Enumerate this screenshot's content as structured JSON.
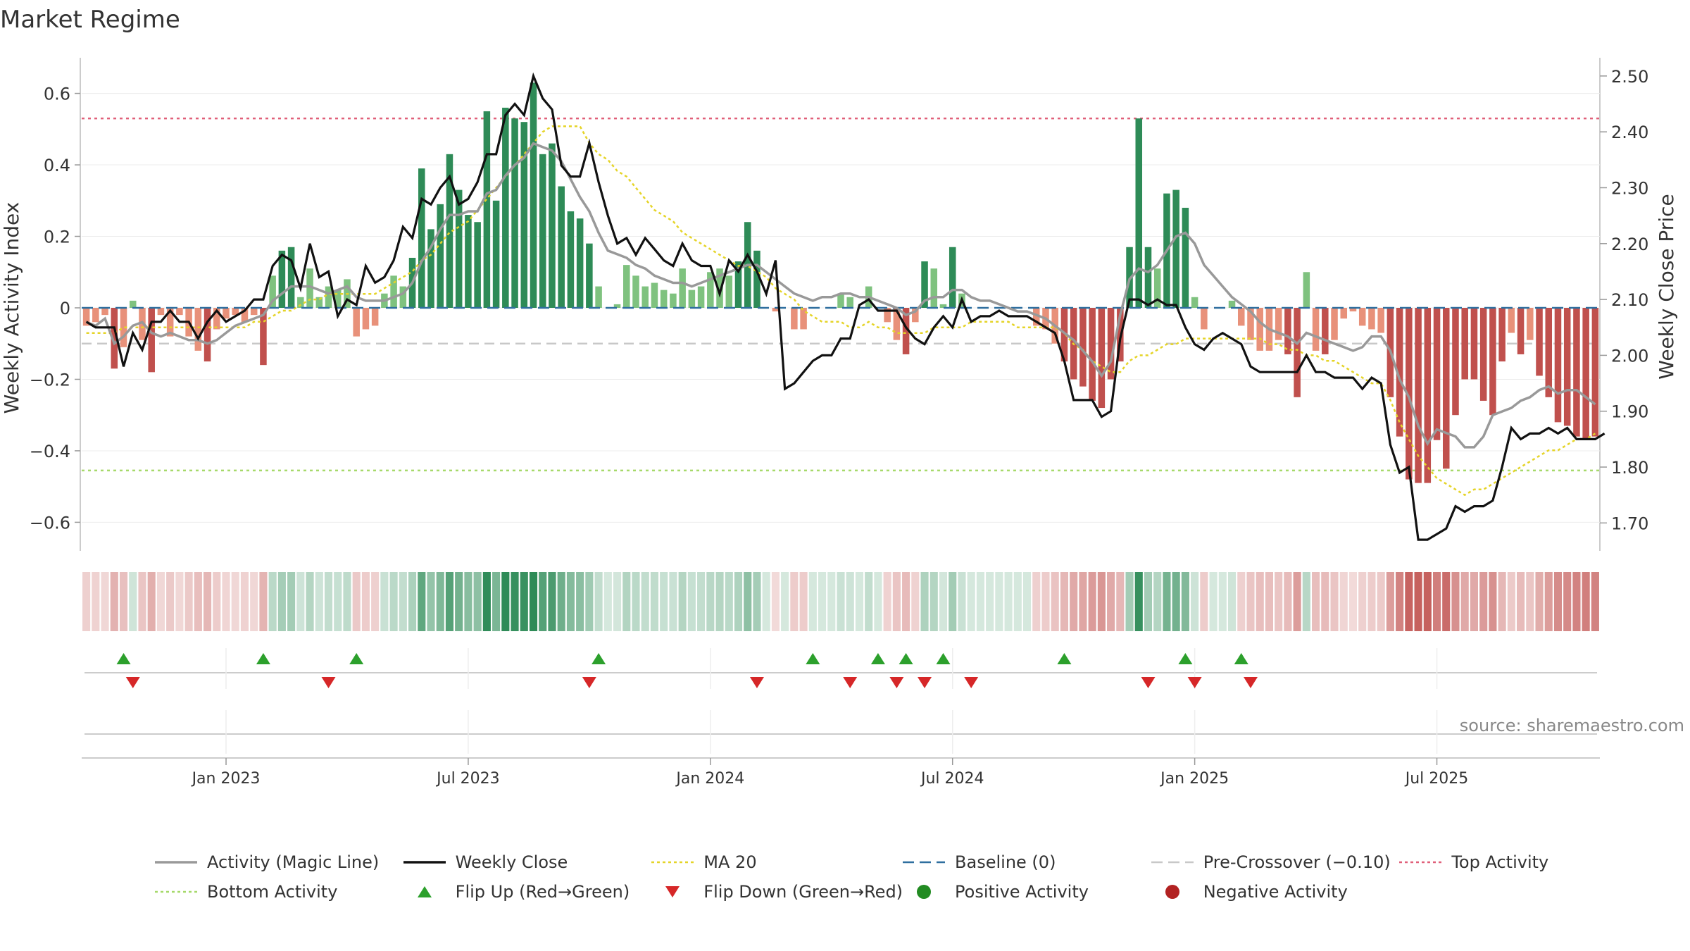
{
  "title": "Market Regime",
  "source": "source: sharemaestro.com",
  "colors": {
    "up_dark": "#2e8b57",
    "up_light": "#7fc27f",
    "down_dark": "#c0504d",
    "down_light": "#e8917a",
    "activity_line": "#999999",
    "close_line": "#111111",
    "ma20": "#e5d428",
    "baseline": "#2f6f9f",
    "pre_crossover": "#c8c8c8",
    "top_activity": "#e0607a",
    "bottom_activity": "#a6d96a",
    "flip_up": "#2ca02c",
    "flip_down": "#d62728",
    "positive": "#228b22",
    "negative": "#b22222"
  },
  "chart_data": {
    "type": "bar",
    "left_axis": {
      "label": "Weekly Activity Index",
      "ticks": [
        "0.6",
        "0.4",
        "0.2",
        "0",
        "−0.2",
        "−0.4",
        "−0.6"
      ],
      "tick_values": [
        0.6,
        0.4,
        0.2,
        0,
        -0.2,
        -0.4,
        -0.6
      ],
      "range": [
        -0.68,
        0.68
      ]
    },
    "right_axis": {
      "label": "Weekly Close Price",
      "ticks": [
        "2.50",
        "2.40",
        "2.30",
        "2.20",
        "2.10",
        "2.00",
        "1.90",
        "1.80",
        "1.70"
      ],
      "tick_values": [
        2.5,
        2.4,
        2.3,
        2.2,
        2.1,
        2.0,
        1.9,
        1.8,
        1.7
      ],
      "range": [
        1.65,
        2.52
      ]
    },
    "x_ticks": [
      {
        "label": "Jan 2023",
        "week": 15
      },
      {
        "label": "Jul 2023",
        "week": 41
      },
      {
        "label": "Jan 2024",
        "week": 67
      },
      {
        "label": "Jul 2024",
        "week": 93
      },
      {
        "label": "Jan 2025",
        "week": 119
      },
      {
        "label": "Jul 2025",
        "week": 145
      }
    ],
    "reference_lines": {
      "top_activity": 0.53,
      "bottom_activity": -0.455,
      "baseline": 0,
      "pre_crossover": -0.1
    },
    "activity_index": [
      -0.05,
      -0.04,
      -0.02,
      -0.17,
      -0.11,
      0.02,
      -0.09,
      -0.18,
      -0.02,
      -0.08,
      -0.02,
      -0.08,
      -0.12,
      -0.15,
      -0.06,
      -0.03,
      -0.02,
      -0.04,
      -0.02,
      -0.16,
      0.09,
      0.16,
      0.17,
      0.03,
      0.11,
      0.03,
      0.06,
      0.05,
      0.08,
      -0.08,
      -0.06,
      -0.05,
      0.04,
      0.09,
      0.06,
      0.14,
      0.39,
      0.22,
      0.29,
      0.43,
      0.33,
      0.26,
      0.24,
      0.55,
      0.3,
      0.56,
      0.53,
      0.52,
      0.63,
      0.43,
      0.46,
      0.34,
      0.27,
      0.25,
      0.18,
      0.06,
      0.0,
      0.01,
      0.12,
      0.09,
      0.06,
      0.07,
      0.05,
      0.04,
      0.11,
      0.05,
      0.06,
      0.1,
      0.11,
      0.09,
      0.13,
      0.24,
      0.16,
      0.0,
      -0.01,
      0.0,
      -0.06,
      -0.06,
      0.0,
      0.0,
      0.0,
      0.04,
      0.03,
      0.0,
      0.06,
      0.0,
      -0.04,
      -0.09,
      -0.13,
      -0.04,
      0.13,
      0.11,
      0.01,
      0.17,
      0.04,
      0.0,
      0.0,
      0.0,
      0.0,
      0.0,
      0.0,
      0.0,
      -0.05,
      -0.06,
      -0.1,
      -0.15,
      -0.2,
      -0.22,
      -0.26,
      -0.28,
      -0.2,
      -0.15,
      0.17,
      0.53,
      0.17,
      0.11,
      0.32,
      0.33,
      0.28,
      0.03,
      -0.06,
      0.0,
      0.0,
      0.02,
      -0.05,
      -0.09,
      -0.12,
      -0.12,
      -0.09,
      -0.13,
      -0.25,
      0.1,
      -0.12,
      -0.13,
      -0.09,
      -0.03,
      -0.01,
      -0.05,
      -0.06,
      -0.07,
      -0.25,
      -0.36,
      -0.48,
      -0.49,
      -0.49,
      -0.37,
      -0.45,
      -0.3,
      -0.2,
      -0.2,
      -0.26,
      -0.3,
      -0.15,
      -0.07,
      -0.13,
      -0.09,
      -0.19,
      -0.25,
      -0.32,
      -0.33,
      -0.36,
      -0.37,
      -0.36
    ],
    "activity_magic_line": [
      -0.04,
      -0.05,
      -0.03,
      -0.1,
      -0.08,
      -0.05,
      -0.04,
      -0.07,
      -0.08,
      -0.07,
      -0.08,
      -0.09,
      -0.09,
      -0.1,
      -0.09,
      -0.07,
      -0.05,
      -0.04,
      -0.03,
      -0.02,
      0.02,
      0.04,
      0.06,
      0.06,
      0.06,
      0.05,
      0.04,
      0.05,
      0.06,
      0.03,
      0.02,
      0.02,
      0.02,
      0.03,
      0.04,
      0.07,
      0.13,
      0.17,
      0.22,
      0.26,
      0.26,
      0.27,
      0.27,
      0.32,
      0.33,
      0.37,
      0.4,
      0.42,
      0.46,
      0.45,
      0.44,
      0.41,
      0.36,
      0.31,
      0.27,
      0.21,
      0.16,
      0.15,
      0.14,
      0.12,
      0.11,
      0.09,
      0.08,
      0.07,
      0.07,
      0.06,
      0.07,
      0.08,
      0.09,
      0.1,
      0.11,
      0.12,
      0.12,
      0.1,
      0.08,
      0.06,
      0.04,
      0.03,
      0.02,
      0.03,
      0.03,
      0.04,
      0.04,
      0.03,
      0.03,
      0.02,
      0.01,
      0.0,
      -0.02,
      -0.01,
      0.02,
      0.03,
      0.03,
      0.05,
      0.05,
      0.03,
      0.02,
      0.02,
      0.01,
      0.0,
      -0.01,
      -0.01,
      -0.02,
      -0.03,
      -0.05,
      -0.07,
      -0.09,
      -0.12,
      -0.15,
      -0.19,
      -0.15,
      -0.02,
      0.08,
      0.11,
      0.1,
      0.12,
      0.16,
      0.2,
      0.21,
      0.18,
      0.12,
      0.09,
      0.06,
      0.03,
      0.01,
      -0.01,
      -0.04,
      -0.06,
      -0.07,
      -0.08,
      -0.1,
      -0.07,
      -0.08,
      -0.09,
      -0.1,
      -0.11,
      -0.12,
      -0.11,
      -0.08,
      -0.08,
      -0.12,
      -0.2,
      -0.25,
      -0.33,
      -0.38,
      -0.34,
      -0.35,
      -0.36,
      -0.39,
      -0.39,
      -0.36,
      -0.3,
      -0.29,
      -0.28,
      -0.26,
      -0.25,
      -0.23,
      -0.22,
      -0.24,
      -0.23,
      -0.23,
      -0.25,
      -0.27
    ],
    "weekly_close": [
      2.06,
      2.05,
      2.05,
      2.05,
      1.98,
      2.04,
      2.01,
      2.06,
      2.06,
      2.08,
      2.06,
      2.06,
      2.03,
      2.06,
      2.08,
      2.06,
      2.07,
      2.08,
      2.1,
      2.1,
      2.16,
      2.18,
      2.17,
      2.12,
      2.2,
      2.14,
      2.15,
      2.07,
      2.1,
      2.09,
      2.16,
      2.13,
      2.14,
      2.17,
      2.23,
      2.21,
      2.28,
      2.27,
      2.3,
      2.32,
      2.27,
      2.28,
      2.31,
      2.36,
      2.36,
      2.43,
      2.45,
      2.43,
      2.5,
      2.46,
      2.44,
      2.34,
      2.32,
      2.32,
      2.38,
      2.31,
      2.25,
      2.2,
      2.21,
      2.18,
      2.21,
      2.19,
      2.17,
      2.16,
      2.2,
      2.17,
      2.16,
      2.16,
      2.11,
      2.17,
      2.15,
      2.18,
      2.15,
      2.11,
      2.17,
      1.94,
      1.95,
      1.97,
      1.99,
      2.0,
      2.0,
      2.03,
      2.03,
      2.09,
      2.1,
      2.08,
      2.08,
      2.08,
      2.05,
      2.03,
      2.02,
      2.05,
      2.07,
      2.05,
      2.1,
      2.06,
      2.07,
      2.07,
      2.08,
      2.07,
      2.07,
      2.07,
      2.06,
      2.05,
      2.04,
      1.99,
      1.92,
      1.92,
      1.92,
      1.89,
      1.9,
      2.03,
      2.1,
      2.1,
      2.09,
      2.1,
      2.09,
      2.09,
      2.05,
      2.02,
      2.01,
      2.03,
      2.04,
      2.03,
      2.02,
      1.98,
      1.97,
      1.97,
      1.97,
      1.97,
      1.97,
      2.0,
      1.97,
      1.97,
      1.96,
      1.96,
      1.96,
      1.94,
      1.96,
      1.95,
      1.84,
      1.79,
      1.8,
      1.67,
      1.67,
      1.68,
      1.69,
      1.73,
      1.72,
      1.73,
      1.73,
      1.74,
      1.8,
      1.87,
      1.85,
      1.86,
      1.86,
      1.87,
      1.86,
      1.87,
      1.85,
      1.85,
      1.85,
      1.86
    ],
    "ma20": [
      2.04,
      2.04,
      2.04,
      2.04,
      2.05,
      2.05,
      2.05,
      2.05,
      2.05,
      2.05,
      2.05,
      2.05,
      2.05,
      2.05,
      2.05,
      2.05,
      2.05,
      2.05,
      2.06,
      2.06,
      2.07,
      2.08,
      2.08,
      2.09,
      2.1,
      2.1,
      2.11,
      2.11,
      2.11,
      2.11,
      2.11,
      2.11,
      2.12,
      2.13,
      2.14,
      2.15,
      2.17,
      2.18,
      2.2,
      2.22,
      2.23,
      2.24,
      2.26,
      2.28,
      2.3,
      2.32,
      2.34,
      2.36,
      2.38,
      2.4,
      2.41,
      2.41,
      2.41,
      2.41,
      2.38,
      2.36,
      2.35,
      2.33,
      2.32,
      2.3,
      2.28,
      2.26,
      2.25,
      2.24,
      2.22,
      2.21,
      2.2,
      2.19,
      2.18,
      2.17,
      2.16,
      2.16,
      2.15,
      2.14,
      2.12,
      2.11,
      2.1,
      2.08,
      2.07,
      2.06,
      2.06,
      2.06,
      2.05,
      2.05,
      2.06,
      2.05,
      2.05,
      2.04,
      2.04,
      2.04,
      2.04,
      2.05,
      2.05,
      2.05,
      2.05,
      2.06,
      2.06,
      2.06,
      2.06,
      2.06,
      2.05,
      2.05,
      2.05,
      2.05,
      2.05,
      2.04,
      2.02,
      2.01,
      1.99,
      1.98,
      1.97,
      1.97,
      1.99,
      2.0,
      2.0,
      2.01,
      2.02,
      2.02,
      2.03,
      2.03,
      2.03,
      2.03,
      2.03,
      2.03,
      2.03,
      2.03,
      2.03,
      2.02,
      2.02,
      2.01,
      2.01,
      2.0,
      2.0,
      1.99,
      1.99,
      1.98,
      1.97,
      1.96,
      1.95,
      1.95,
      1.92,
      1.88,
      1.85,
      1.82,
      1.8,
      1.78,
      1.77,
      1.76,
      1.75,
      1.76,
      1.76,
      1.77,
      1.78,
      1.79,
      1.8,
      1.81,
      1.82,
      1.83,
      1.83,
      1.84,
      1.85,
      1.85,
      1.86
    ],
    "flip_up_weeks": [
      4,
      19,
      29,
      55,
      78,
      85,
      88,
      92,
      105,
      118,
      124
    ],
    "flip_down_weeks": [
      5,
      26,
      54,
      72,
      82,
      87,
      90,
      95,
      114,
      119,
      125
    ]
  },
  "legend": [
    {
      "label": "Activity (Magic Line)",
      "kind": "line",
      "color": "#999999"
    },
    {
      "label": "Weekly Close",
      "kind": "line",
      "color": "#111111"
    },
    {
      "label": "MA 20",
      "kind": "dotted",
      "color": "#e5d428"
    },
    {
      "label": "Baseline (0)",
      "kind": "dashed",
      "color": "#2f6f9f"
    },
    {
      "label": "Pre-Crossover (−0.10)",
      "kind": "dashed",
      "color": "#c8c8c8"
    },
    {
      "label": "Top Activity",
      "kind": "dotted",
      "color": "#e0607a"
    },
    {
      "label": "Bottom Activity",
      "kind": "dotted",
      "color": "#a6d96a"
    },
    {
      "label": "Flip Up (Red→Green)",
      "kind": "tri-up",
      "color": "#2ca02c"
    },
    {
      "label": "Flip Down (Green→Red)",
      "kind": "tri-down",
      "color": "#d62728"
    },
    {
      "label": "Positive Activity",
      "kind": "dot",
      "color": "#228b22"
    },
    {
      "label": "Negative Activity",
      "kind": "dot",
      "color": "#b22222"
    }
  ]
}
